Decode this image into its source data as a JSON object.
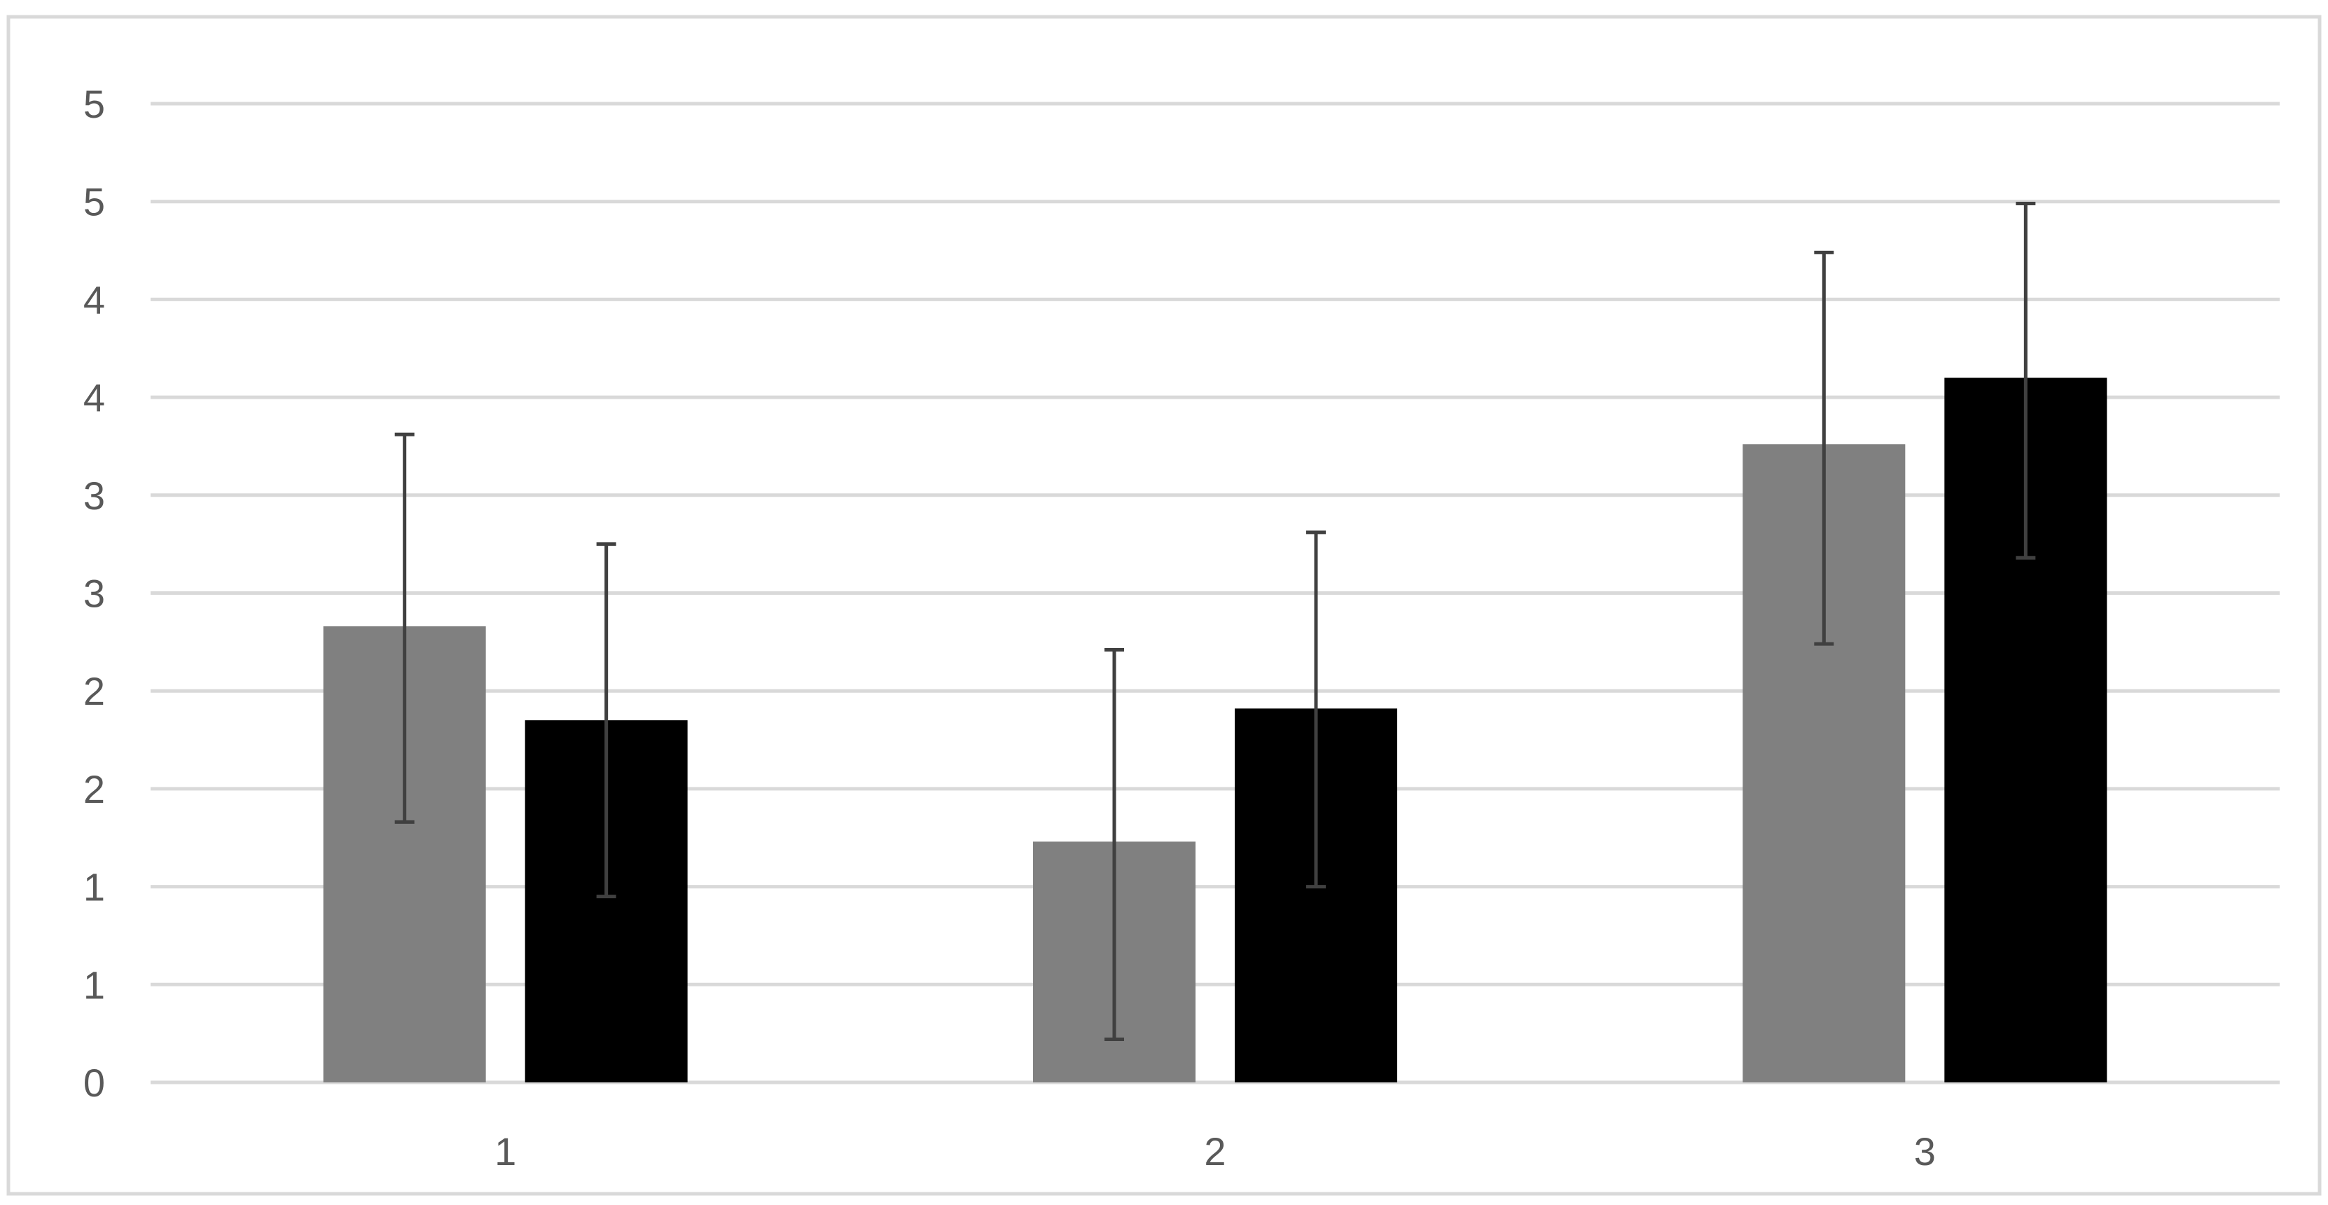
{
  "chart_data": {
    "type": "bar",
    "categories": [
      "1",
      "2",
      "3"
    ],
    "series": [
      {
        "color": "#808080",
        "values": [
          2.33,
          1.23,
          3.26
        ],
        "error_low": [
          1.33,
          0.22,
          2.24
        ],
        "error_high": [
          3.31,
          2.21,
          4.24
        ]
      },
      {
        "color": "#000000",
        "values": [
          1.85,
          1.91,
          3.6
        ],
        "error_low": [
          0.95,
          1.0,
          2.68
        ],
        "error_high": [
          2.75,
          2.81,
          4.49
        ]
      }
    ],
    "ylim": [
      0,
      5
    ],
    "y_ticks": [
      0,
      0.5,
      1,
      1.5,
      2,
      2.5,
      3,
      3.5,
      4,
      4.5,
      5
    ],
    "y_tick_labels": [
      "0",
      "1",
      "1",
      "2",
      "2",
      "3",
      "3",
      "4",
      "4",
      "5",
      "5"
    ],
    "grid": true,
    "legend": "none",
    "title": "",
    "xlabel": "",
    "ylabel": ""
  }
}
